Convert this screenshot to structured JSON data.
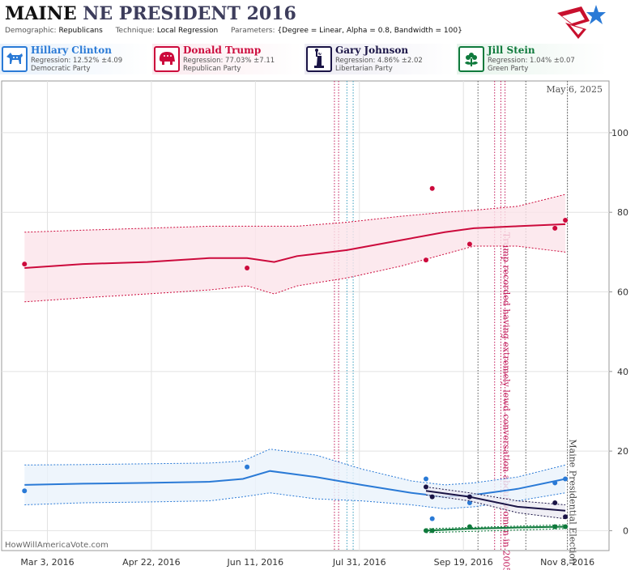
{
  "header": {
    "state": "MAINE",
    "rest": "NE PRESIDENT 2016",
    "demographic_label": "Demographic:",
    "demographic_value": "Republicans",
    "technique_label": "Technique:",
    "technique_value": "Local Regression",
    "parameters_label": "Parameters:",
    "parameters_value": "{Degree = Linear, Alpha = 0.8, Bandwidth = 100}"
  },
  "candidates": [
    {
      "name": "Hillary Clinton",
      "regression": "Regression: 12.52% ±4.09",
      "party": "Democratic Party",
      "color": "#2a7ad6",
      "bg": "#e8f1fb",
      "icon": "donkey-icon"
    },
    {
      "name": "Donald Trump",
      "regression": "Regression: 77.03% ±7.11",
      "party": "Republican Party",
      "color": "#cc0a3c",
      "bg": "#fbe9ee",
      "icon": "elephant-icon"
    },
    {
      "name": "Gary Johnson",
      "regression": "Regression: 4.86% ±2.02",
      "party": "Libertarian Party",
      "color": "#1a1446",
      "bg": "#ecebf3",
      "icon": "statue-of-liberty-icon"
    },
    {
      "name": "Jill Stein",
      "regression": "Regression: 1.04% ±0.07",
      "party": "Green Party",
      "color": "#0f7a3c",
      "bg": "#e7f4ec",
      "icon": "flower-icon"
    }
  ],
  "footer": "HowWillAmericaVote.com",
  "chart_data": {
    "type": "line",
    "date_label": "May 6, 2025",
    "x_tick_labels": [
      "Mar 3, 2016",
      "Apr 22, 2016",
      "Jun 11, 2016",
      "Jul 31, 2016",
      "Sep 19, 2016",
      "Nov 8, 2016"
    ],
    "x_tick_dates": [
      "2016-03-03",
      "2016-04-22",
      "2016-06-11",
      "2016-07-31",
      "2016-09-19",
      "2016-11-08"
    ],
    "xlim": [
      "2016-02-10",
      "2016-11-28"
    ],
    "y_ticks": [
      0,
      20,
      40,
      60,
      80,
      100
    ],
    "ylim": [
      -5,
      113
    ],
    "grid": true,
    "event_lines": [
      {
        "date": "2016-07-19",
        "color": "#c21a5a",
        "style": "dotted"
      },
      {
        "date": "2016-07-21",
        "color": "#c21a5a",
        "style": "dotted"
      },
      {
        "date": "2016-07-25",
        "color": "#3a9fbf",
        "style": "dotted"
      },
      {
        "date": "2016-07-28",
        "color": "#3a9fbf",
        "style": "dotted"
      },
      {
        "date": "2016-09-26",
        "color": "#555555",
        "style": "dotted"
      },
      {
        "date": "2016-10-04",
        "color": "#c21a5a",
        "style": "dotted"
      },
      {
        "date": "2016-10-07",
        "color": "#c21a5a",
        "style": "dotted"
      },
      {
        "date": "2016-10-09",
        "color": "#c21a5a",
        "style": "dotted"
      },
      {
        "date": "2016-10-19",
        "color": "#555555",
        "style": "dotted"
      },
      {
        "date": "2016-11-08",
        "color": "#555555",
        "style": "dotted"
      }
    ],
    "annotations": [
      {
        "text": "Trump recorded having extremely lewd conversation about women in 2005",
        "date": "2016-10-07",
        "y": 75,
        "color": "#c21a5a"
      },
      {
        "text": "Maine Presidential Election",
        "date": "2016-11-08",
        "y": 23,
        "color": "#444444"
      }
    ],
    "series": [
      {
        "name": "Donald Trump",
        "color": "#cc0a3c",
        "band_fill": "#fbe4ea",
        "points": [
          [
            "2016-02-21",
            67
          ],
          [
            "2016-06-07",
            66
          ],
          [
            "2016-09-01",
            68
          ],
          [
            "2016-09-04",
            86
          ],
          [
            "2016-09-22",
            72
          ],
          [
            "2016-11-02",
            76
          ],
          [
            "2016-11-07",
            78
          ]
        ],
        "fit": [
          [
            "2016-02-21",
            66
          ],
          [
            "2016-03-20",
            67
          ],
          [
            "2016-04-20",
            67.5
          ],
          [
            "2016-05-20",
            68.5
          ],
          [
            "2016-06-07",
            68.5
          ],
          [
            "2016-06-20",
            67.5
          ],
          [
            "2016-07-01",
            69
          ],
          [
            "2016-07-25",
            70.5
          ],
          [
            "2016-08-20",
            73
          ],
          [
            "2016-09-10",
            75
          ],
          [
            "2016-09-24",
            76
          ],
          [
            "2016-10-15",
            76.5
          ],
          [
            "2016-11-07",
            77
          ]
        ],
        "upper": [
          [
            "2016-02-21",
            75
          ],
          [
            "2016-03-20",
            75.5
          ],
          [
            "2016-04-20",
            76
          ],
          [
            "2016-05-20",
            76.5
          ],
          [
            "2016-06-07",
            76.5
          ],
          [
            "2016-06-20",
            76.5
          ],
          [
            "2016-07-01",
            76.5
          ],
          [
            "2016-07-25",
            77.5
          ],
          [
            "2016-08-20",
            79
          ],
          [
            "2016-09-10",
            80
          ],
          [
            "2016-09-24",
            80.5
          ],
          [
            "2016-10-15",
            81.5
          ],
          [
            "2016-11-07",
            84.5
          ]
        ],
        "lower": [
          [
            "2016-02-21",
            57.5
          ],
          [
            "2016-03-20",
            58.5
          ],
          [
            "2016-04-20",
            59.5
          ],
          [
            "2016-05-20",
            60.5
          ],
          [
            "2016-06-07",
            61.5
          ],
          [
            "2016-06-20",
            59.5
          ],
          [
            "2016-07-01",
            61.5
          ],
          [
            "2016-07-25",
            63.5
          ],
          [
            "2016-08-20",
            66.5
          ],
          [
            "2016-09-10",
            69.5
          ],
          [
            "2016-09-24",
            71.5
          ],
          [
            "2016-10-15",
            71.5
          ],
          [
            "2016-11-07",
            70
          ]
        ]
      },
      {
        "name": "Hillary Clinton",
        "color": "#2a7ad6",
        "band_fill": "#eaf2fb",
        "points": [
          [
            "2016-02-21",
            10
          ],
          [
            "2016-06-07",
            16
          ],
          [
            "2016-09-01",
            13
          ],
          [
            "2016-09-04",
            3
          ],
          [
            "2016-09-22",
            7
          ],
          [
            "2016-11-02",
            12
          ],
          [
            "2016-11-07",
            13
          ]
        ],
        "fit": [
          [
            "2016-02-21",
            11.5
          ],
          [
            "2016-03-20",
            11.8
          ],
          [
            "2016-04-20",
            12
          ],
          [
            "2016-05-20",
            12.3
          ],
          [
            "2016-06-05",
            13
          ],
          [
            "2016-06-18",
            15
          ],
          [
            "2016-07-10",
            13.5
          ],
          [
            "2016-08-01",
            11.5
          ],
          [
            "2016-08-25",
            9.5
          ],
          [
            "2016-09-10",
            8.5
          ],
          [
            "2016-09-24",
            9
          ],
          [
            "2016-10-15",
            10.5
          ],
          [
            "2016-11-07",
            13
          ]
        ],
        "upper": [
          [
            "2016-02-21",
            16.5
          ],
          [
            "2016-03-20",
            16.6
          ],
          [
            "2016-04-20",
            16.8
          ],
          [
            "2016-05-20",
            17
          ],
          [
            "2016-06-05",
            17.5
          ],
          [
            "2016-06-18",
            20.5
          ],
          [
            "2016-07-10",
            19
          ],
          [
            "2016-08-01",
            15.5
          ],
          [
            "2016-08-25",
            12.5
          ],
          [
            "2016-09-10",
            11.5
          ],
          [
            "2016-09-24",
            12
          ],
          [
            "2016-10-15",
            13.5
          ],
          [
            "2016-11-07",
            16.5
          ]
        ],
        "lower": [
          [
            "2016-02-21",
            6.5
          ],
          [
            "2016-03-20",
            7
          ],
          [
            "2016-04-20",
            7.2
          ],
          [
            "2016-05-20",
            7.5
          ],
          [
            "2016-06-05",
            8.5
          ],
          [
            "2016-06-18",
            9.5
          ],
          [
            "2016-07-10",
            8
          ],
          [
            "2016-08-01",
            7.5
          ],
          [
            "2016-08-25",
            6.5
          ],
          [
            "2016-09-10",
            5.5
          ],
          [
            "2016-09-24",
            6
          ],
          [
            "2016-10-15",
            7.5
          ],
          [
            "2016-11-07",
            9.5
          ]
        ]
      },
      {
        "name": "Gary Johnson",
        "color": "#1a1446",
        "band_fill": "#ecebf3",
        "points": [
          [
            "2016-09-01",
            11
          ],
          [
            "2016-09-04",
            8.5
          ],
          [
            "2016-09-22",
            8.5
          ],
          [
            "2016-11-02",
            7
          ],
          [
            "2016-11-07",
            3.5
          ]
        ],
        "fit": [
          [
            "2016-09-01",
            10
          ],
          [
            "2016-09-22",
            8.5
          ],
          [
            "2016-10-15",
            6
          ],
          [
            "2016-11-07",
            5
          ]
        ],
        "upper": [
          [
            "2016-09-01",
            11
          ],
          [
            "2016-09-22",
            9.5
          ],
          [
            "2016-10-15",
            7.5
          ],
          [
            "2016-11-07",
            6.5
          ]
        ],
        "lower": [
          [
            "2016-09-01",
            9
          ],
          [
            "2016-09-22",
            7.5
          ],
          [
            "2016-10-15",
            4.5
          ],
          [
            "2016-11-07",
            3
          ]
        ]
      },
      {
        "name": "Jill Stein",
        "color": "#0f7a3c",
        "band_fill": "#e7f4ec",
        "points": [
          [
            "2016-09-01",
            0
          ],
          [
            "2016-09-04",
            0
          ],
          [
            "2016-09-22",
            1
          ],
          [
            "2016-11-02",
            1
          ],
          [
            "2016-11-07",
            1
          ]
        ],
        "fit": [
          [
            "2016-09-01",
            0
          ],
          [
            "2016-09-22",
            0.5
          ],
          [
            "2016-10-15",
            0.8
          ],
          [
            "2016-11-07",
            1
          ]
        ],
        "upper": [
          [
            "2016-09-01",
            0.5
          ],
          [
            "2016-11-07",
            1.5
          ]
        ],
        "lower": [
          [
            "2016-09-01",
            -0.5
          ],
          [
            "2016-11-07",
            0.5
          ]
        ]
      }
    ]
  }
}
